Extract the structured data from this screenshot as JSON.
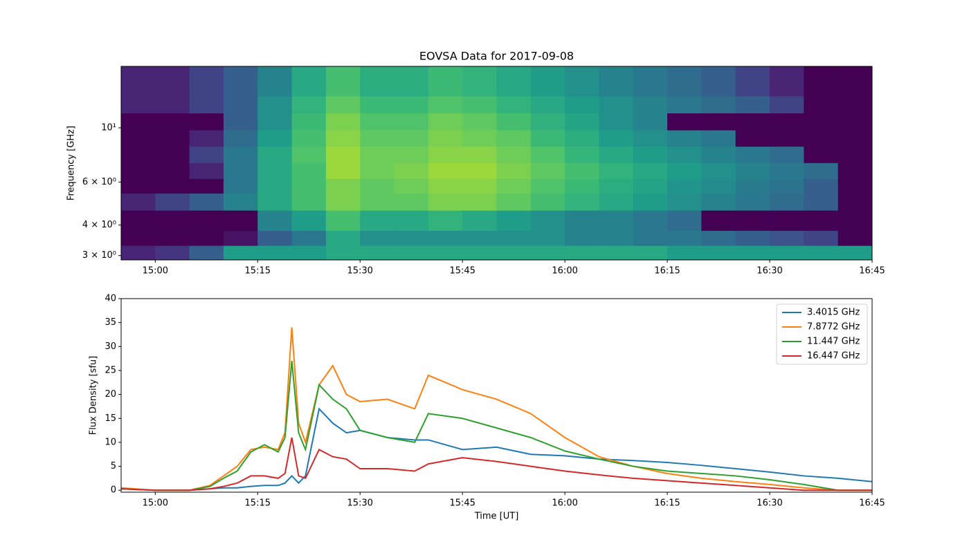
{
  "chart_data": [
    {
      "type": "heatmap",
      "title": "EOVSA Data for 2017-09-08",
      "ylabel": "Frequency [GHz]",
      "colormap": "viridis",
      "yscale": "log",
      "x": [
        "14:55",
        "15:00",
        "15:05",
        "15:10",
        "15:15",
        "15:20",
        "15:25",
        "15:30",
        "15:35",
        "15:40",
        "15:45",
        "15:50",
        "15:55",
        "16:00",
        "16:05",
        "16:10",
        "16:15",
        "16:20",
        "16:25",
        "16:30",
        "16:35",
        "16:40"
      ],
      "y_edges": [
        2.88,
        3.3,
        3.8,
        4.6,
        5.4,
        6.2,
        7.2,
        8.4,
        9.8,
        11.5,
        13.5,
        17.85
      ],
      "values": [
        [
          0.1,
          0.15,
          0.3,
          0.55,
          0.55,
          0.55,
          0.6,
          0.6,
          0.6,
          0.6,
          0.6,
          0.6,
          0.6,
          0.6,
          0.6,
          0.6,
          0.55,
          0.55,
          0.55,
          0.55,
          0.55,
          0.55
        ],
        [
          0,
          0,
          0,
          0.05,
          0.3,
          0.4,
          0.6,
          0.5,
          0.5,
          0.5,
          0.5,
          0.5,
          0.5,
          0.45,
          0.45,
          0.4,
          0.4,
          0.35,
          0.3,
          0.25,
          0.2,
          0
        ],
        [
          0,
          0,
          0,
          0,
          0.45,
          0.55,
          0.7,
          0.6,
          0.6,
          0.65,
          0.6,
          0.55,
          0.5,
          0.45,
          0.45,
          0.4,
          0.35,
          0,
          0,
          0,
          0,
          0
        ],
        [
          0.1,
          0.2,
          0.3,
          0.45,
          0.6,
          0.7,
          0.8,
          0.75,
          0.75,
          0.8,
          0.8,
          0.75,
          0.7,
          0.65,
          0.6,
          0.55,
          0.5,
          0.45,
          0.4,
          0.35,
          0.3,
          0
        ],
        [
          0,
          0,
          0,
          0.4,
          0.6,
          0.7,
          0.8,
          0.75,
          0.78,
          0.82,
          0.82,
          0.78,
          0.72,
          0.68,
          0.62,
          0.58,
          0.52,
          0.48,
          0.42,
          0.38,
          0.3,
          0
        ],
        [
          0,
          0,
          0.1,
          0.4,
          0.6,
          0.7,
          0.85,
          0.78,
          0.8,
          0.85,
          0.85,
          0.8,
          0.75,
          0.7,
          0.65,
          0.6,
          0.55,
          0.5,
          0.45,
          0.4,
          0.35,
          0
        ],
        [
          0,
          0,
          0.2,
          0.4,
          0.6,
          0.72,
          0.85,
          0.78,
          0.78,
          0.82,
          0.82,
          0.78,
          0.72,
          0.66,
          0.6,
          0.55,
          0.5,
          0.45,
          0.4,
          0.35,
          0,
          0
        ],
        [
          0,
          0,
          0.1,
          0.35,
          0.55,
          0.7,
          0.82,
          0.75,
          0.75,
          0.8,
          0.78,
          0.75,
          0.68,
          0.62,
          0.55,
          0.5,
          0.45,
          0.4,
          0,
          0,
          0,
          0
        ],
        [
          0,
          0,
          0,
          0.3,
          0.5,
          0.68,
          0.8,
          0.72,
          0.72,
          0.78,
          0.75,
          0.7,
          0.64,
          0.58,
          0.5,
          0.45,
          0,
          0,
          0,
          0,
          0,
          0
        ],
        [
          0.1,
          0.1,
          0.2,
          0.3,
          0.5,
          0.65,
          0.75,
          0.68,
          0.68,
          0.72,
          0.7,
          0.65,
          0.6,
          0.55,
          0.5,
          0.45,
          0.4,
          0.35,
          0.3,
          0.2,
          0,
          0
        ],
        [
          0.1,
          0.1,
          0.2,
          0.3,
          0.45,
          0.6,
          0.7,
          0.62,
          0.62,
          0.68,
          0.65,
          0.6,
          0.55,
          0.5,
          0.45,
          0.4,
          0.35,
          0.3,
          0.2,
          0.1,
          0,
          0
        ]
      ],
      "xlim": [
        "14:55",
        "16:45"
      ],
      "xticks": [
        "15:00",
        "15:15",
        "15:30",
        "15:45",
        "16:00",
        "16:15",
        "16:30",
        "16:45"
      ],
      "ylim": [
        2.88,
        17.85
      ],
      "yticks": [
        {
          "value": 3,
          "label": "3 × 10⁰"
        },
        {
          "value": 4,
          "label": "4 × 10⁰"
        },
        {
          "value": 6,
          "label": "6 × 10⁰"
        },
        {
          "value": 10,
          "label": "10¹"
        }
      ]
    },
    {
      "type": "line",
      "xlabel": "Time [UT]",
      "ylabel": "Flux Density [sfu]",
      "legend": "upper right",
      "x": [
        "14:55",
        "15:00",
        "15:05",
        "15:08",
        "15:10",
        "15:12",
        "15:14",
        "15:16",
        "15:18",
        "15:19",
        "15:20",
        "15:21",
        "15:22",
        "15:24",
        "15:26",
        "15:28",
        "15:30",
        "15:34",
        "15:38",
        "15:40",
        "15:45",
        "15:50",
        "15:55",
        "16:00",
        "16:05",
        "16:10",
        "16:15",
        "16:20",
        "16:25",
        "16:30",
        "16:35",
        "16:40",
        "16:45"
      ],
      "series": [
        {
          "name": "3.4015 GHz",
          "color": "#1f77b4",
          "values": [
            0.3,
            0,
            0,
            0.3,
            0.5,
            0.5,
            0.8,
            1,
            1,
            1.5,
            3,
            1.5,
            3,
            17,
            14,
            12,
            12.5,
            11,
            10.5,
            10.5,
            8.5,
            9,
            7.5,
            7.2,
            6.5,
            6.2,
            5.8,
            5.2,
            4.5,
            3.8,
            3,
            2.5,
            1.8
          ]
        },
        {
          "name": "7.8772 GHz",
          "color": "#ff7f0e",
          "values": [
            0.5,
            0,
            0,
            1,
            3,
            5,
            8.5,
            9,
            8.5,
            12,
            34,
            14,
            10,
            22,
            26,
            20,
            18.5,
            19,
            17,
            24,
            21,
            19,
            16,
            11,
            7,
            5,
            3.5,
            2.5,
            1.8,
            1.2,
            0.5,
            0,
            0
          ]
        },
        {
          "name": "11.447 GHz",
          "color": "#2ca02c",
          "values": [
            0.3,
            0,
            0,
            0.8,
            2.5,
            4,
            8,
            9.5,
            8,
            11,
            27,
            12,
            8.5,
            22,
            19,
            17,
            12.5,
            11,
            10,
            16,
            15,
            13,
            11,
            8.2,
            6.5,
            5,
            4,
            3.5,
            3,
            2.2,
            1.2,
            0,
            0
          ]
        },
        {
          "name": "16.447 GHz",
          "color": "#d62728",
          "values": [
            0.3,
            0,
            0,
            0.3,
            0.8,
            1.5,
            3,
            3,
            2.5,
            3.5,
            11,
            3,
            2.5,
            8.5,
            7,
            6.5,
            4.5,
            4.5,
            4,
            5.5,
            6.8,
            6,
            5,
            4,
            3.2,
            2.5,
            2,
            1.5,
            1,
            0.5,
            0,
            0,
            0
          ]
        }
      ],
      "xlim": [
        "14:55",
        "16:45"
      ],
      "xticks": [
        "15:00",
        "15:15",
        "15:30",
        "15:45",
        "16:00",
        "16:15",
        "16:30",
        "16:45"
      ],
      "ylim": [
        -0.4,
        40
      ],
      "yticks": [
        0,
        5,
        10,
        15,
        20,
        25,
        30,
        35,
        40
      ]
    }
  ]
}
